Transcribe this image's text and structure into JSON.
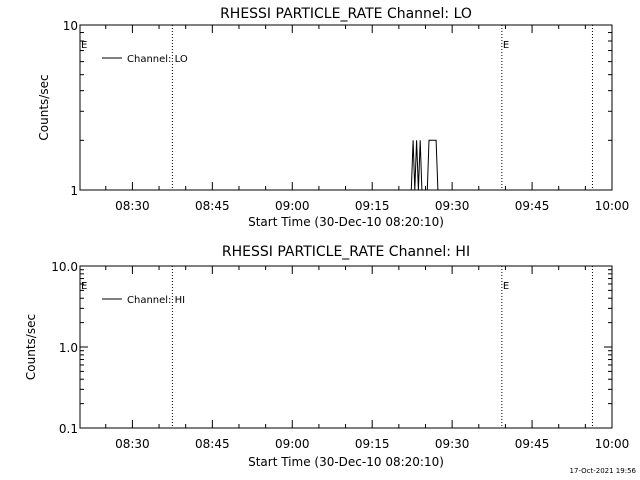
{
  "chart_data": [
    {
      "type": "line",
      "title": "RHESSI PARTICLE_RATE Channel: LO",
      "xlabel": "Start Time (30-Dec-10 08:20:10)",
      "ylabel": "Counts/sec",
      "yscale": "log",
      "ylim": [
        1,
        10
      ],
      "ytick_labels": [
        "1",
        "10"
      ],
      "xlim": [
        "08:20:10",
        "10:00:00"
      ],
      "xtick_labels": [
        "08:30",
        "08:45",
        "09:00",
        "09:15",
        "09:30",
        "09:45",
        "10:00"
      ],
      "legend": "top-left",
      "series": [
        {
          "name": "Channel: LO",
          "x": [
            "09:22:20",
            "09:22:40",
            "09:23:00",
            "09:23:20",
            "09:23:40",
            "09:24:00",
            "09:24:20",
            "09:25:20",
            "09:25:40",
            "09:26:00",
            "09:26:20",
            "09:26:40",
            "09:27:00",
            "09:27:20"
          ],
          "y": [
            1,
            2,
            1,
            2,
            1,
            2,
            1,
            1,
            2,
            2,
            2,
            2,
            2,
            1
          ]
        }
      ],
      "vertical_lines": [
        {
          "time": "08:37:30",
          "label": ""
        },
        {
          "time": "09:39:20",
          "label": "E"
        },
        {
          "time": "09:56:20",
          "label": ""
        }
      ],
      "left_marker": "E"
    },
    {
      "type": "line",
      "title": "RHESSI PARTICLE_RATE Channel: HI",
      "xlabel": "Start Time (30-Dec-10 08:20:10)",
      "ylabel": "Counts/sec",
      "yscale": "log",
      "ylim": [
        0.1,
        10
      ],
      "ytick_labels": [
        "0.1",
        "1.0",
        "10.0"
      ],
      "xlim": [
        "08:20:10",
        "10:00:00"
      ],
      "xtick_labels": [
        "08:30",
        "08:45",
        "09:00",
        "09:15",
        "09:30",
        "09:45",
        "10:00"
      ],
      "legend": "top-left",
      "series": [
        {
          "name": "Channel: HI",
          "x": [],
          "y": []
        }
      ],
      "vertical_lines": [
        {
          "time": "08:37:30",
          "label": ""
        },
        {
          "time": "09:39:20",
          "label": "E"
        },
        {
          "time": "09:56:20",
          "label": ""
        }
      ],
      "left_marker": "E"
    }
  ],
  "timestamp": "17-Oct-2021 19:56"
}
